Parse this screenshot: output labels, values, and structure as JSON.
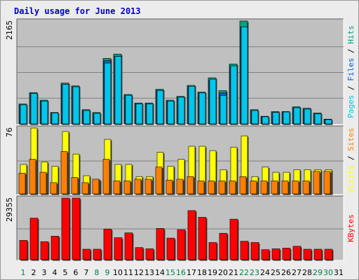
{
  "title": "Daily usage for June 2013",
  "colors": {
    "page_bg": "#ececec",
    "plot_bg": "#c0c0c0",
    "grid": "#808080",
    "pages": "#00c6ea",
    "files": "#0060cf",
    "hits": "#00a080",
    "visits": "#ffff00",
    "sites": "#ff8000",
    "kbytes": "#ff0000",
    "title": "#0000cc",
    "weekend_tick": "#00804a"
  },
  "chart_data": [
    {
      "type": "bar",
      "panel": "pages-files-hits",
      "side_labels": [
        "Pages",
        "Files",
        "Hits"
      ],
      "y_max_label": "2165",
      "ylim": [
        0,
        2165
      ],
      "categories": [
        "1",
        "2",
        "3",
        "4",
        "5",
        "6",
        "7",
        "8",
        "9",
        "10",
        "11",
        "12",
        "13",
        "14",
        "15",
        "16",
        "17",
        "18",
        "19",
        "20",
        "21",
        "22",
        "23",
        "24",
        "25",
        "26",
        "27",
        "28",
        "29",
        "30",
        "31"
      ],
      "series": [
        {
          "name": "Hits",
          "values": [
            420,
            660,
            500,
            240,
            860,
            800,
            300,
            240,
            1380,
            1470,
            620,
            440,
            440,
            730,
            500,
            580,
            810,
            670,
            970,
            700,
            1260,
            2165,
            300,
            160,
            260,
            260,
            360,
            330,
            230,
            100,
            0
          ]
        },
        {
          "name": "Files",
          "values": [
            400,
            640,
            480,
            230,
            830,
            780,
            280,
            220,
            1330,
            1420,
            600,
            420,
            420,
            700,
            480,
            560,
            790,
            650,
            920,
            650,
            1210,
            2040,
            280,
            150,
            240,
            250,
            340,
            310,
            210,
            90,
            0
          ]
        },
        {
          "name": "Pages",
          "values": [
            400,
            640,
            480,
            230,
            830,
            780,
            280,
            220,
            1280,
            1420,
            600,
            420,
            420,
            700,
            480,
            560,
            790,
            650,
            940,
            600,
            1220,
            2040,
            280,
            150,
            240,
            250,
            340,
            310,
            210,
            90,
            0
          ]
        }
      ]
    },
    {
      "type": "bar",
      "panel": "visits-sites",
      "side_labels": [
        "Visits",
        "Sites"
      ],
      "y_max_label": "76",
      "ylim": [
        0,
        76
      ],
      "categories": [
        "1",
        "2",
        "3",
        "4",
        "5",
        "6",
        "7",
        "8",
        "9",
        "10",
        "11",
        "12",
        "13",
        "14",
        "15",
        "16",
        "17",
        "18",
        "19",
        "20",
        "21",
        "22",
        "23",
        "24",
        "25",
        "26",
        "27",
        "28",
        "29",
        "30",
        "31"
      ],
      "series": [
        {
          "name": "Visits",
          "values": [
            34,
            76,
            37,
            32,
            72,
            46,
            21,
            16,
            63,
            34,
            34,
            20,
            20,
            48,
            32,
            40,
            55,
            55,
            50,
            28,
            54,
            67,
            20,
            31,
            25,
            25,
            28,
            28,
            28,
            28,
            0
          ]
        },
        {
          "name": "Sites",
          "values": [
            24,
            40,
            25,
            13,
            49,
            19,
            13,
            17,
            40,
            15,
            15,
            17,
            17,
            31,
            16,
            17,
            20,
            15,
            15,
            15,
            15,
            20,
            15,
            15,
            15,
            15,
            15,
            15,
            26,
            26,
            0
          ]
        }
      ]
    },
    {
      "type": "bar",
      "panel": "kbytes",
      "side_labels": [
        "KBytes"
      ],
      "y_max_label": "29355",
      "ylim": [
        0,
        29355
      ],
      "categories": [
        "1",
        "2",
        "3",
        "4",
        "5",
        "6",
        "7",
        "8",
        "9",
        "10",
        "11",
        "12",
        "13",
        "14",
        "15",
        "16",
        "17",
        "18",
        "19",
        "20",
        "21",
        "22",
        "23",
        "24",
        "25",
        "26",
        "27",
        "28",
        "29",
        "30",
        "31"
      ],
      "series": [
        {
          "name": "KBytes",
          "values": [
            9200,
            19800,
            8600,
            11200,
            29355,
            29355,
            5000,
            5000,
            14600,
            10500,
            12800,
            5800,
            5200,
            14900,
            10300,
            14300,
            23400,
            20200,
            8200,
            12600,
            19300,
            8800,
            8200,
            4800,
            5200,
            5500,
            6400,
            5000,
            5000,
            5000,
            0
          ]
        }
      ]
    }
  ],
  "weekend_days": [
    1,
    8,
    9,
    15,
    16,
    22,
    23,
    29,
    30
  ]
}
